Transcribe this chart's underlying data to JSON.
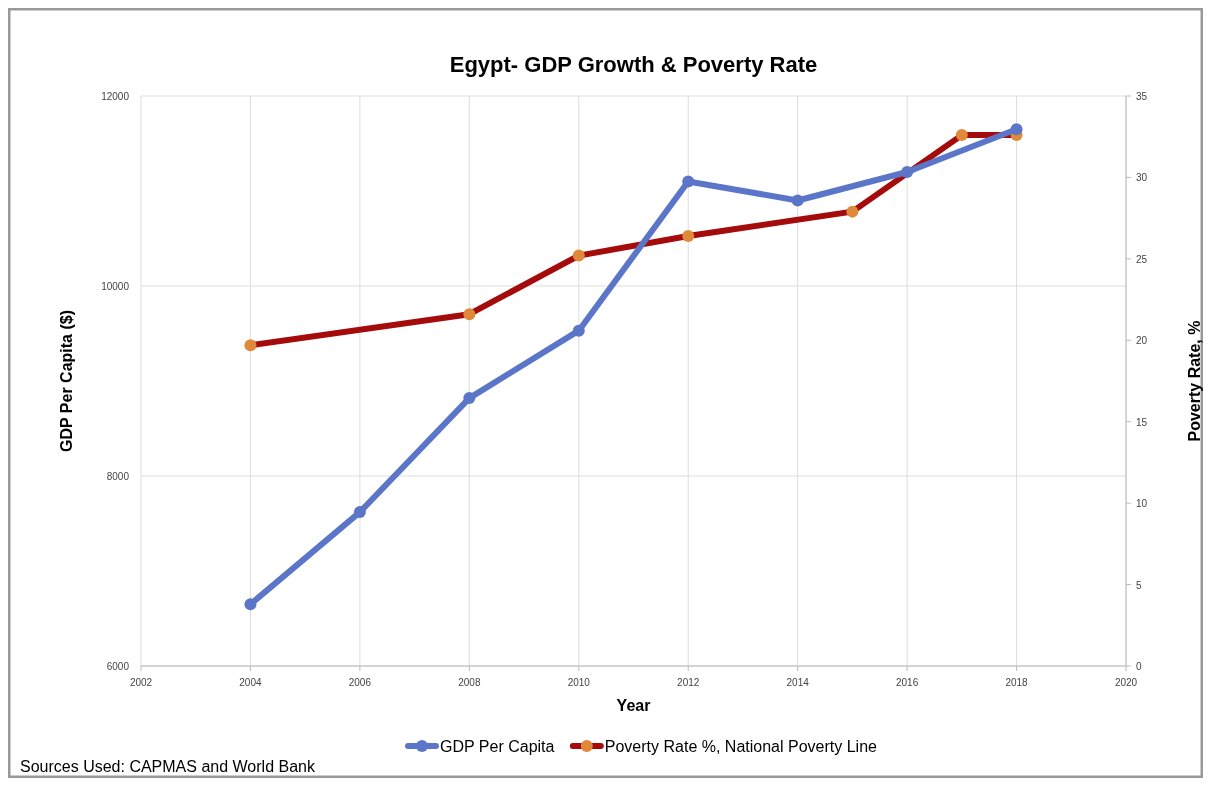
{
  "chart_data": {
    "type": "line",
    "title": "Egypt- GDP Growth & Poverty Rate",
    "xlabel": "Year",
    "ylabel": "GDP Per Capita ($)",
    "y2label": "Poverty Rate, %",
    "series": [
      {
        "name": "GDP Per Capita",
        "color": "#5b76c9",
        "x": [
          2004,
          2006,
          2008,
          2010,
          2012,
          2014,
          2016,
          2018
        ],
        "values": [
          6650,
          7620,
          8820,
          9530,
          11100,
          10900,
          11200,
          11650
        ]
      },
      {
        "name": "Poverty Rate %, National Poverty Line",
        "color": "#a50b0b",
        "axis": "y2",
        "x": [
          2004,
          2008,
          2010,
          2012,
          2015,
          2017,
          2018
        ],
        "values": [
          19.7,
          21.6,
          25.2,
          26.4,
          27.9,
          32.6,
          32.6
        ]
      }
    ],
    "xlim": [
      2002,
      2020
    ],
    "xticks": [
      2002,
      2004,
      2006,
      2008,
      2010,
      2012,
      2014,
      2016,
      2018,
      2020
    ],
    "ylim": [
      6000,
      12000
    ],
    "yticks": [
      6000,
      8000,
      10000,
      12000
    ],
    "y2lim": [
      0,
      35
    ],
    "y2ticks": [
      0,
      5,
      10,
      15,
      20,
      25,
      30,
      35
    ],
    "grid": true,
    "legend": "bottom",
    "marker": "circle",
    "line_style": "solid",
    "annotations": [
      "Sources Used: CAPMAS and World Bank"
    ]
  }
}
